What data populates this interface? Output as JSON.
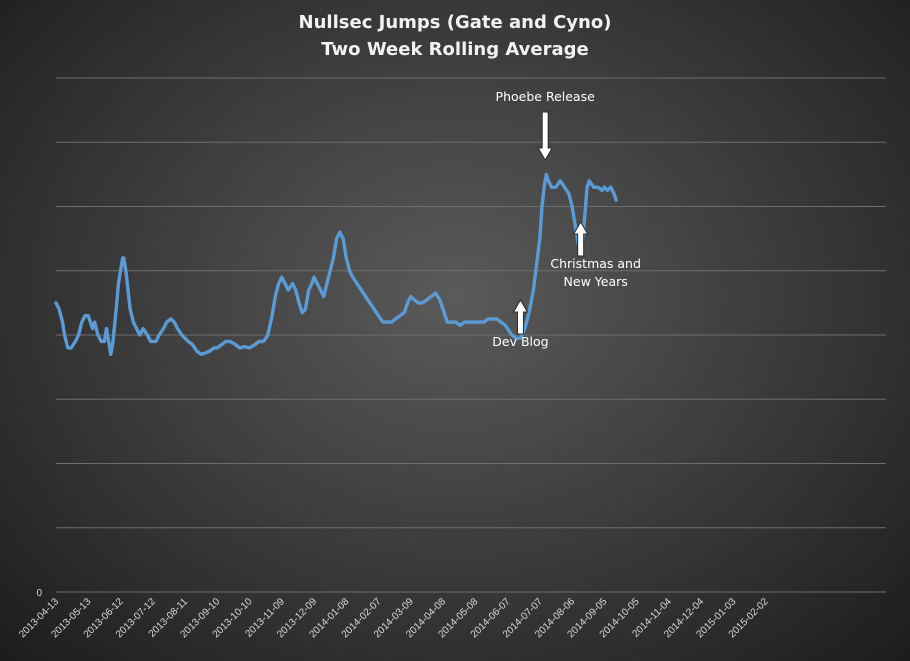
{
  "chart_data": {
    "type": "line",
    "title": "Nullsec Jumps (Gate and Cyno)",
    "subtitle": "Two Week Rolling Average",
    "xlabel": "",
    "ylabel": "",
    "y_tick_labels": [
      "0"
    ],
    "grid": true,
    "legend": "none",
    "ylim": [
      0,
      8
    ],
    "categories": [
      "2013-04-13",
      "2013-05-13",
      "2013-06-12",
      "2013-07-12",
      "2013-08-11",
      "2013-09-10",
      "2013-10-10",
      "2013-11-09",
      "2013-12-09",
      "2014-01-08",
      "2014-02-07",
      "2014-03-09",
      "2014-04-08",
      "2014-05-08",
      "2014-06-07",
      "2014-07-07",
      "2014-08-06",
      "2014-09-05",
      "2014-10-05",
      "2014-11-04",
      "2014-12-04",
      "2015-01-03",
      "2015-02-02"
    ],
    "series": [
      {
        "color": "#5b9bd5",
        "points": [
          [
            "2013-04-13",
            4.5
          ],
          [
            "2013-04-16",
            4.4
          ],
          [
            "2013-04-19",
            4.2
          ],
          [
            "2013-04-21",
            4.0
          ],
          [
            "2013-04-24",
            3.8
          ],
          [
            "2013-04-27",
            3.8
          ],
          [
            "2013-05-01",
            3.9
          ],
          [
            "2013-05-04",
            4.0
          ],
          [
            "2013-05-07",
            4.2
          ],
          [
            "2013-05-10",
            4.3
          ],
          [
            "2013-05-13",
            4.3
          ],
          [
            "2013-05-15",
            4.2
          ],
          [
            "2013-05-17",
            4.1
          ],
          [
            "2013-05-19",
            4.2
          ],
          [
            "2013-05-22",
            4.0
          ],
          [
            "2013-05-25",
            3.9
          ],
          [
            "2013-05-28",
            3.9
          ],
          [
            "2013-05-30",
            4.1
          ],
          [
            "2013-06-01",
            3.9
          ],
          [
            "2013-06-03",
            3.7
          ],
          [
            "2013-06-05",
            3.9
          ],
          [
            "2013-06-08",
            4.4
          ],
          [
            "2013-06-10",
            4.8
          ],
          [
            "2013-06-12",
            5.0
          ],
          [
            "2013-06-14",
            5.2
          ],
          [
            "2013-06-15",
            5.2
          ],
          [
            "2013-06-17",
            5.0
          ],
          [
            "2013-06-19",
            4.7
          ],
          [
            "2013-06-21",
            4.4
          ],
          [
            "2013-06-24",
            4.2
          ],
          [
            "2013-06-27",
            4.1
          ],
          [
            "2013-06-30",
            4.0
          ],
          [
            "2013-07-03",
            4.1
          ],
          [
            "2013-07-07",
            4.0
          ],
          [
            "2013-07-10",
            3.9
          ],
          [
            "2013-07-12",
            3.9
          ],
          [
            "2013-07-15",
            3.9
          ],
          [
            "2013-07-18",
            4.0
          ],
          [
            "2013-07-22",
            4.1
          ],
          [
            "2013-07-25",
            4.2
          ],
          [
            "2013-07-29",
            4.25
          ],
          [
            "2013-08-01",
            4.2
          ],
          [
            "2013-08-04",
            4.1
          ],
          [
            "2013-08-08",
            4.0
          ],
          [
            "2013-08-11",
            3.95
          ],
          [
            "2013-08-14",
            3.9
          ],
          [
            "2013-08-18",
            3.85
          ],
          [
            "2013-08-22",
            3.75
          ],
          [
            "2013-08-26",
            3.7
          ],
          [
            "2013-08-30",
            3.72
          ],
          [
            "2013-09-03",
            3.75
          ],
          [
            "2013-09-07",
            3.8
          ],
          [
            "2013-09-10",
            3.8
          ],
          [
            "2013-09-14",
            3.85
          ],
          [
            "2013-09-18",
            3.9
          ],
          [
            "2013-09-22",
            3.9
          ],
          [
            "2013-09-27",
            3.85
          ],
          [
            "2013-10-01",
            3.8
          ],
          [
            "2013-10-05",
            3.82
          ],
          [
            "2013-10-10",
            3.8
          ],
          [
            "2013-10-15",
            3.85
          ],
          [
            "2013-10-19",
            3.9
          ],
          [
            "2013-10-23",
            3.9
          ],
          [
            "2013-10-27",
            4.0
          ],
          [
            "2013-10-31",
            4.3
          ],
          [
            "2013-11-03",
            4.6
          ],
          [
            "2013-11-06",
            4.8
          ],
          [
            "2013-11-09",
            4.9
          ],
          [
            "2013-11-12",
            4.8
          ],
          [
            "2013-11-15",
            4.7
          ],
          [
            "2013-11-19",
            4.8
          ],
          [
            "2013-11-22",
            4.7
          ],
          [
            "2013-11-25",
            4.5
          ],
          [
            "2013-11-28",
            4.35
          ],
          [
            "2013-12-01",
            4.4
          ],
          [
            "2013-12-04",
            4.7
          ],
          [
            "2013-12-07",
            4.8
          ],
          [
            "2013-12-09",
            4.9
          ],
          [
            "2013-12-12",
            4.8
          ],
          [
            "2013-12-15",
            4.7
          ],
          [
            "2013-12-18",
            4.6
          ],
          [
            "2013-12-21",
            4.8
          ],
          [
            "2013-12-24",
            5.0
          ],
          [
            "2013-12-27",
            5.2
          ],
          [
            "2013-12-30",
            5.5
          ],
          [
            "2014-01-02",
            5.6
          ],
          [
            "2014-01-05",
            5.5
          ],
          [
            "2014-01-08",
            5.2
          ],
          [
            "2014-01-11",
            5.0
          ],
          [
            "2014-01-14",
            4.9
          ],
          [
            "2014-01-18",
            4.8
          ],
          [
            "2014-01-22",
            4.7
          ],
          [
            "2014-01-26",
            4.6
          ],
          [
            "2014-01-30",
            4.5
          ],
          [
            "2014-02-03",
            4.4
          ],
          [
            "2014-02-07",
            4.3
          ],
          [
            "2014-02-11",
            4.2
          ],
          [
            "2014-02-15",
            4.2
          ],
          [
            "2014-02-19",
            4.2
          ],
          [
            "2014-02-23",
            4.25
          ],
          [
            "2014-02-27",
            4.3
          ],
          [
            "2014-03-03",
            4.35
          ],
          [
            "2014-03-06",
            4.5
          ],
          [
            "2014-03-09",
            4.6
          ],
          [
            "2014-03-12",
            4.55
          ],
          [
            "2014-03-16",
            4.5
          ],
          [
            "2014-03-20",
            4.5
          ],
          [
            "2014-03-24",
            4.55
          ],
          [
            "2014-03-28",
            4.6
          ],
          [
            "2014-04-01",
            4.65
          ],
          [
            "2014-04-05",
            4.55
          ],
          [
            "2014-04-08",
            4.4
          ],
          [
            "2014-04-12",
            4.2
          ],
          [
            "2014-04-16",
            4.2
          ],
          [
            "2014-04-20",
            4.2
          ],
          [
            "2014-04-24",
            4.15
          ],
          [
            "2014-04-28",
            4.2
          ],
          [
            "2014-05-02",
            4.2
          ],
          [
            "2014-05-06",
            4.2
          ],
          [
            "2014-05-08",
            4.2
          ],
          [
            "2014-05-12",
            4.2
          ],
          [
            "2014-05-16",
            4.2
          ],
          [
            "2014-05-20",
            4.25
          ],
          [
            "2014-05-24",
            4.25
          ],
          [
            "2014-05-28",
            4.25
          ],
          [
            "2014-06-01",
            4.2
          ],
          [
            "2014-06-05",
            4.15
          ],
          [
            "2014-06-07",
            4.1
          ],
          [
            "2014-06-11",
            4.0
          ],
          [
            "2014-06-15",
            3.95
          ],
          [
            "2014-06-19",
            3.95
          ],
          [
            "2014-06-23",
            4.1
          ],
          [
            "2014-06-27",
            4.35
          ],
          [
            "2014-07-01",
            4.7
          ],
          [
            "2014-07-04",
            5.1
          ],
          [
            "2014-07-07",
            5.5
          ],
          [
            "2014-07-09",
            6.0
          ],
          [
            "2014-07-11",
            6.3
          ],
          [
            "2014-07-13",
            6.5
          ],
          [
            "2014-07-15",
            6.4
          ],
          [
            "2014-07-18",
            6.3
          ],
          [
            "2014-07-22",
            6.3
          ],
          [
            "2014-07-26",
            6.4
          ],
          [
            "2014-07-30",
            6.3
          ],
          [
            "2014-08-03",
            6.2
          ],
          [
            "2014-08-06",
            6.0
          ],
          [
            "2014-08-08",
            5.8
          ],
          [
            "2014-08-10",
            5.6
          ],
          [
            "2014-08-12",
            5.4
          ],
          [
            "2014-08-14",
            5.3
          ],
          [
            "2014-08-16",
            5.5
          ],
          [
            "2014-08-18",
            5.9
          ],
          [
            "2014-08-20",
            6.3
          ],
          [
            "2014-08-22",
            6.4
          ],
          [
            "2014-08-26",
            6.3
          ],
          [
            "2014-08-30",
            6.3
          ],
          [
            "2014-09-03",
            6.25
          ],
          [
            "2014-09-05",
            6.3
          ],
          [
            "2014-09-08",
            6.25
          ],
          [
            "2014-09-11",
            6.3
          ],
          [
            "2014-09-14",
            6.2
          ],
          [
            "2014-09-16",
            6.1
          ]
        ]
      }
    ],
    "annotations": [
      {
        "lines": [
          "Phoebe Release"
        ],
        "arrow": "down",
        "at": "2014-07-12"
      },
      {
        "lines": [
          "Dev Blog"
        ],
        "arrow": "up",
        "at": "2014-06-19"
      },
      {
        "lines": [
          "Christmas and",
          "New Years"
        ],
        "arrow": "up",
        "at": "2014-08-14"
      }
    ]
  }
}
